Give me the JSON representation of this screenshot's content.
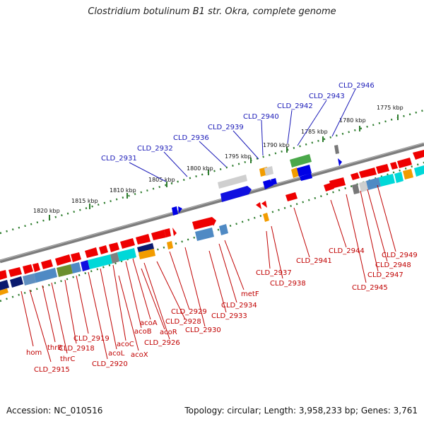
{
  "title": "Clostridium botulinum B1 str. Okra, complete genome",
  "accession": "Accession: NC_010516",
  "topology": "Topology: circular; Length: 3,958,233 bp; Genes: 3,761",
  "colors": {
    "backbone": "#808080",
    "tick": "#2e7d2e",
    "forward_label": "#1a1ab8",
    "reverse_label": "#c00000",
    "cds": "#ee0000"
  },
  "ticks": [
    "1775 kbp",
    "1780 kbp",
    "1785 kbp",
    "1790 kbp",
    "1795 kbp",
    "1800 kbp",
    "1805 kbp",
    "1810 kbp",
    "1815 kbp",
    "1820 kbp"
  ],
  "forward_labels": [
    "CLD_2931",
    "CLD_2932",
    "CLD_2936",
    "CLD_2939",
    "CLD_2940",
    "CLD_2942",
    "CLD_2943",
    "CLD_2946"
  ],
  "reverse_labels": [
    "hom",
    "CLD_2915",
    "thrB",
    "thrC",
    "CLD_2918",
    "CLD_2919",
    "CLD_2920",
    "acoL",
    "acoC",
    "acoB",
    "acoA",
    "acoX",
    "CLD_2926",
    "acoR",
    "CLD_2928",
    "CLD_2929",
    "CLD_2930",
    "CLD_2933",
    "CLD_2934",
    "metF",
    "CLD_2937",
    "CLD_2938",
    "CLD_2941",
    "CLD_2944",
    "CLD_2945",
    "CLD_2947",
    "CLD_2948",
    "CLD_2949"
  ]
}
